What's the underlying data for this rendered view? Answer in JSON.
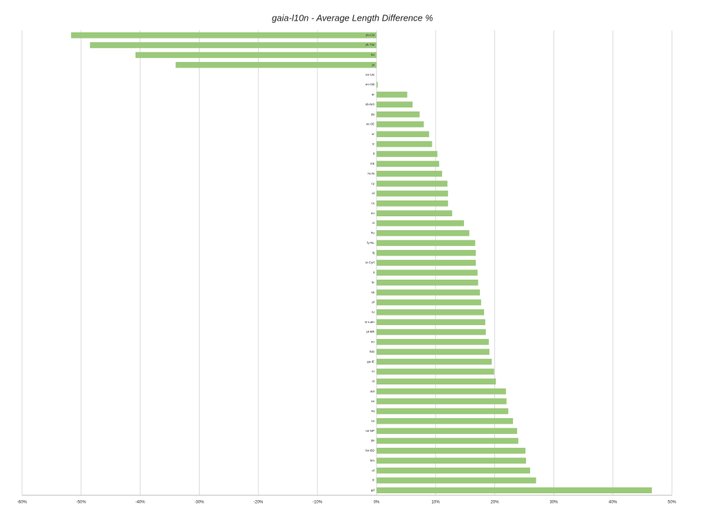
{
  "chart_data": {
    "type": "barh",
    "title": "gaia-l10n - Average Length Difference %",
    "categories": [
      "zh-CN",
      "zh-TW",
      "ko",
      "ja",
      "en-US",
      "en-GB",
      "ar",
      "nb-NO",
      "da",
      "sv-SE",
      "ur",
      "tr",
      "tl",
      "mk",
      "hi-IN",
      "cy",
      "id",
      "cs",
      "eo",
      "vi",
      "hu",
      "fy-NL",
      "lij",
      "sr-Cyrl",
      "it",
      "hr",
      "sk",
      "pl",
      "ru",
      "sr-Latn",
      "pt-BR",
      "eu",
      "hsb",
      "ga-IE",
      "ro",
      "nl",
      "ast",
      "es",
      "sq",
      "ca",
      "ne-NP",
      "de",
      "bn-BD",
      "km",
      "el",
      "fr",
      "gd"
    ],
    "values": [
      -51.7,
      -48.5,
      -40.8,
      -34.0,
      0,
      0.2,
      5.2,
      6.1,
      7.3,
      8.0,
      8.9,
      9.4,
      10.3,
      10.6,
      11.1,
      12.0,
      12.1,
      12.1,
      12.8,
      14.8,
      15.7,
      16.7,
      16.8,
      16.8,
      17.1,
      17.2,
      17.5,
      17.7,
      18.2,
      18.4,
      18.5,
      19.0,
      19.1,
      19.5,
      19.9,
      20.2,
      21.9,
      22.0,
      22.3,
      23.1,
      23.8,
      24.0,
      25.2,
      25.3,
      26.0,
      27.0,
      46.6
    ],
    "color": "#9bc97a",
    "xlim": [
      -60,
      50
    ],
    "xticks": [
      {
        "value": -60,
        "label": "-60%"
      },
      {
        "value": -50,
        "label": "-50%"
      },
      {
        "value": -40,
        "label": "-40%"
      },
      {
        "value": -30,
        "label": "-30%"
      },
      {
        "value": -20,
        "label": "-20%"
      },
      {
        "value": -10,
        "label": "-10%"
      },
      {
        "value": 0,
        "label": "0%"
      },
      {
        "value": 10,
        "label": "10%"
      },
      {
        "value": 20,
        "label": "20%"
      },
      {
        "value": 30,
        "label": "30%"
      },
      {
        "value": 40,
        "label": "40%"
      },
      {
        "value": 50,
        "label": "50%"
      }
    ],
    "grid": true
  }
}
